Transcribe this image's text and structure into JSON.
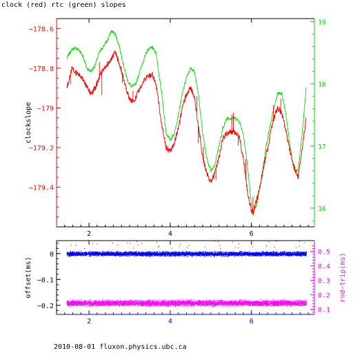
{
  "title": "clock (red) rtc (green) slopes",
  "footer": "2010-08-01 fluxon.physics.ubc.ca",
  "colors": {
    "red": "#ff0000",
    "green": "#00e000",
    "blue": "#0000ff",
    "magenta": "#ff00ff",
    "axis": "#000000"
  },
  "chart_data": [
    {
      "type": "line",
      "ylabel": "clockslope",
      "ylim": [
        -179.6,
        -178.55
      ],
      "y2lim": [
        15.7,
        19.05
      ],
      "xlim": [
        1.2,
        7.55
      ],
      "x_ticks": [
        2,
        4,
        6
      ],
      "y_ticks": [
        -178.6,
        -178.8,
        -179,
        -179.2,
        -179.4
      ],
      "y_tick_labels": [
        "−178.6",
        "−178.8",
        "−179",
        "−179.2",
        "−179.4"
      ],
      "y2_ticks": [
        19,
        18,
        17,
        16
      ],
      "series": [
        {
          "name": "clock",
          "color": "#ff0000",
          "axis": "left",
          "x": [
            1.45,
            1.52,
            1.58,
            1.65,
            1.75,
            1.85,
            1.95,
            2.05,
            2.15,
            2.25,
            2.35,
            2.45,
            2.55,
            2.65,
            2.75,
            2.85,
            2.95,
            3.05,
            3.15,
            3.25,
            3.35,
            3.45,
            3.55,
            3.65,
            3.7,
            3.8,
            3.9,
            4.0,
            4.1,
            4.2,
            4.3,
            4.4,
            4.5,
            4.6,
            4.7,
            4.8,
            4.9,
            5.0,
            5.1,
            5.2,
            5.3,
            5.4,
            5.5,
            5.6,
            5.7,
            5.8,
            5.9,
            6.0,
            6.05,
            6.15,
            6.25,
            6.35,
            6.45,
            6.55,
            6.65,
            6.75,
            6.85,
            6.95,
            7.05,
            7.15,
            7.25,
            7.35
          ],
          "y": [
            -178.9,
            -178.85,
            -178.8,
            -178.82,
            -178.83,
            -178.85,
            -178.9,
            -178.93,
            -178.9,
            -178.85,
            -178.8,
            -178.78,
            -178.75,
            -178.72,
            -178.78,
            -178.85,
            -178.93,
            -178.97,
            -178.95,
            -178.9,
            -178.86,
            -178.84,
            -178.83,
            -178.88,
            -178.95,
            -179.1,
            -179.2,
            -179.22,
            -179.18,
            -179.1,
            -179.0,
            -178.93,
            -178.9,
            -178.95,
            -179.1,
            -179.25,
            -179.33,
            -179.37,
            -179.33,
            -179.25,
            -179.15,
            -179.13,
            -179.12,
            -179.12,
            -179.15,
            -179.25,
            -179.42,
            -179.52,
            -179.52,
            -179.45,
            -179.35,
            -179.25,
            -179.15,
            -179.05,
            -179.0,
            -179.03,
            -179.12,
            -179.22,
            -179.3,
            -179.35,
            -179.2,
            -179.05
          ]
        },
        {
          "name": "rtc",
          "color": "#00e000",
          "axis": "right",
          "x": [
            1.45,
            1.52,
            1.58,
            1.65,
            1.75,
            1.85,
            1.95,
            2.05,
            2.15,
            2.25,
            2.35,
            2.45,
            2.55,
            2.65,
            2.75,
            2.85,
            2.95,
            3.05,
            3.15,
            3.25,
            3.35,
            3.45,
            3.55,
            3.65,
            3.7,
            3.8,
            3.9,
            4.0,
            4.1,
            4.2,
            4.3,
            4.4,
            4.5,
            4.6,
            4.7,
            4.8,
            4.9,
            5.0,
            5.1,
            5.2,
            5.3,
            5.4,
            5.5,
            5.6,
            5.7,
            5.8,
            5.9,
            6.0,
            6.05,
            6.15,
            6.25,
            6.35,
            6.45,
            6.55,
            6.65,
            6.75,
            6.85,
            6.95,
            7.05,
            7.15,
            7.25,
            7.35
          ],
          "y": [
            18.4,
            18.5,
            18.55,
            18.58,
            18.55,
            18.45,
            18.25,
            18.2,
            18.3,
            18.5,
            18.6,
            18.7,
            18.85,
            18.8,
            18.6,
            18.3,
            18.05,
            17.95,
            18.0,
            18.2,
            18.4,
            18.55,
            18.6,
            18.5,
            18.25,
            17.8,
            17.2,
            17.1,
            17.2,
            17.5,
            17.85,
            18.1,
            18.25,
            18.2,
            17.8,
            17.2,
            16.8,
            16.6,
            16.7,
            17.0,
            17.3,
            17.45,
            17.45,
            17.45,
            17.4,
            17.2,
            16.7,
            16.05,
            15.9,
            16.1,
            16.5,
            16.95,
            17.3,
            17.6,
            17.85,
            17.85,
            17.5,
            17.0,
            16.6,
            16.6,
            17.2,
            17.95
          ]
        }
      ]
    },
    {
      "type": "scatter",
      "ylabel": "offset(ms)",
      "y2label": "rnd−trip(ms)",
      "ylim": [
        -0.235,
        0.05
      ],
      "y2lim": [
        0.065,
        0.575
      ],
      "xlim": [
        1.2,
        7.55
      ],
      "x_ticks": [
        2,
        4,
        6
      ],
      "y_ticks": [
        0,
        -0.1,
        -0.2
      ],
      "y_tick_labels": [
        "0",
        "−0.1",
        "−0.2"
      ],
      "y2_ticks": [
        0.5,
        0.4,
        0.3,
        0.2,
        0.1
      ],
      "series": [
        {
          "name": "offset",
          "color": "#0000ff",
          "axis": "left",
          "x_range": [
            1.45,
            7.35
          ],
          "y_center": 0.0,
          "y_spread": 0.012
        },
        {
          "name": "rnd-trip",
          "color": "#ff00ff",
          "axis": "right",
          "x_range": [
            1.45,
            7.35
          ],
          "y_center": 0.145,
          "y_spread": 0.028
        }
      ]
    }
  ]
}
